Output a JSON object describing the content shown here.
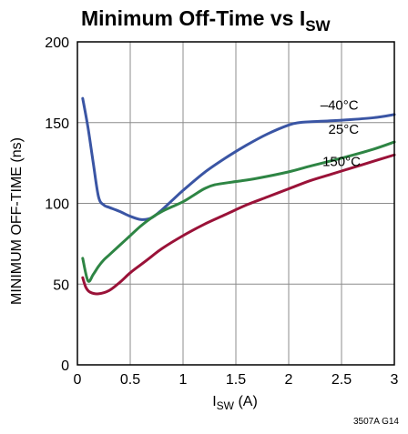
{
  "chart_data": {
    "type": "line",
    "title_main": "Minimum Off-Time vs I",
    "title_sub": "SW",
    "xlabel_main": "I",
    "xlabel_sub": "SW",
    "xlabel_unit": " (A)",
    "ylabel": "MINIMUM OFF-TIME (ns)",
    "xlim": [
      0,
      3
    ],
    "ylim": [
      0,
      200
    ],
    "x_ticks": [
      0,
      0.5,
      1,
      1.5,
      2,
      2.5,
      3
    ],
    "x_tick_labels": [
      "0",
      "0.5",
      "1",
      "1.5",
      "2",
      "2.5",
      "3"
    ],
    "y_ticks": [
      0,
      50,
      100,
      150,
      200
    ],
    "y_tick_labels": [
      "0",
      "50",
      "100",
      "150",
      "200"
    ],
    "grid": true,
    "series": [
      {
        "name": "–40°C",
        "color": "#3a55a4",
        "points": [
          [
            0.05,
            165
          ],
          [
            0.1,
            147
          ],
          [
            0.15,
            125
          ],
          [
            0.2,
            104
          ],
          [
            0.25,
            99
          ],
          [
            0.3,
            97.5
          ],
          [
            0.4,
            95
          ],
          [
            0.5,
            92
          ],
          [
            0.6,
            90
          ],
          [
            0.7,
            91
          ],
          [
            0.8,
            96
          ],
          [
            0.9,
            102
          ],
          [
            1.0,
            108
          ],
          [
            1.2,
            119
          ],
          [
            1.4,
            128
          ],
          [
            1.6,
            136
          ],
          [
            1.8,
            143
          ],
          [
            2.0,
            148.5
          ],
          [
            2.1,
            150
          ],
          [
            2.2,
            150.5
          ],
          [
            2.5,
            151.5
          ],
          [
            2.8,
            153
          ],
          [
            3.0,
            155
          ]
        ]
      },
      {
        "name": "25°C",
        "color": "#2e8544",
        "points": [
          [
            0.05,
            66
          ],
          [
            0.1,
            52
          ],
          [
            0.15,
            56
          ],
          [
            0.2,
            61
          ],
          [
            0.25,
            65
          ],
          [
            0.3,
            68
          ],
          [
            0.4,
            74
          ],
          [
            0.5,
            80
          ],
          [
            0.6,
            86
          ],
          [
            0.7,
            91
          ],
          [
            0.8,
            95
          ],
          [
            0.9,
            98
          ],
          [
            1.0,
            101
          ],
          [
            1.1,
            105
          ],
          [
            1.2,
            109
          ],
          [
            1.3,
            111.5
          ],
          [
            1.5,
            113.5
          ],
          [
            1.7,
            115.5
          ],
          [
            2.0,
            119.5
          ],
          [
            2.2,
            123
          ],
          [
            2.5,
            128
          ],
          [
            2.8,
            133.5
          ],
          [
            3.0,
            138
          ]
        ]
      },
      {
        "name": "150°C",
        "color": "#9a1238",
        "points": [
          [
            0.05,
            54
          ],
          [
            0.08,
            48
          ],
          [
            0.12,
            45
          ],
          [
            0.2,
            44
          ],
          [
            0.3,
            46
          ],
          [
            0.4,
            51
          ],
          [
            0.5,
            57
          ],
          [
            0.6,
            62
          ],
          [
            0.7,
            67
          ],
          [
            0.8,
            72
          ],
          [
            1.0,
            80
          ],
          [
            1.2,
            87
          ],
          [
            1.4,
            93
          ],
          [
            1.6,
            99
          ],
          [
            1.8,
            104
          ],
          [
            2.0,
            109
          ],
          [
            2.2,
            114
          ],
          [
            2.4,
            118
          ],
          [
            2.6,
            122
          ],
          [
            2.8,
            126
          ],
          [
            3.0,
            130
          ]
        ]
      }
    ]
  },
  "figure_id": "3507A G14"
}
